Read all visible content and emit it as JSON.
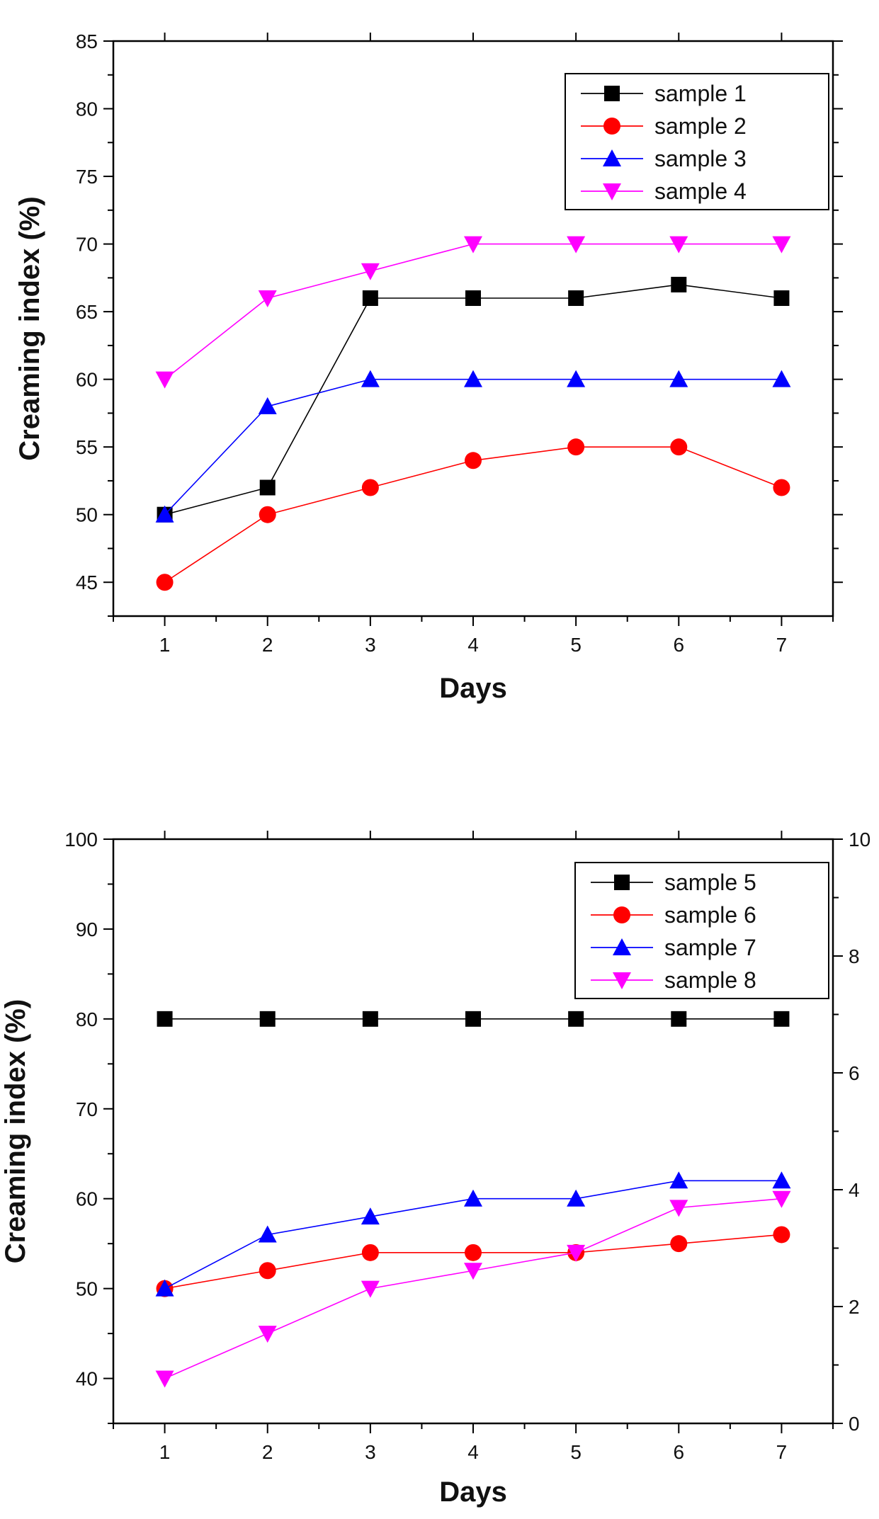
{
  "chart_data": [
    {
      "type": "line",
      "title": "",
      "xlabel": "Days",
      "ylabel": "Creaming index (%)",
      "x": [
        1,
        2,
        3,
        4,
        5,
        6,
        7
      ],
      "xlim": [
        0.5,
        7.5
      ],
      "ylim": [
        42.5,
        85
      ],
      "xticks": [
        1,
        2,
        3,
        4,
        5,
        6,
        7
      ],
      "yticks": [
        45,
        50,
        55,
        60,
        65,
        70,
        75,
        80,
        85
      ],
      "legend_position": "top-right",
      "series": [
        {
          "name": "sample 1",
          "values": [
            50,
            52,
            66,
            66,
            66,
            67,
            66
          ],
          "color": "#000000",
          "marker": "square"
        },
        {
          "name": "sample 2",
          "values": [
            45,
            50,
            52,
            54,
            55,
            55,
            52
          ],
          "color": "#ff0000",
          "marker": "circle"
        },
        {
          "name": "sample 3",
          "values": [
            50,
            58,
            60,
            60,
            60,
            60,
            60
          ],
          "color": "#0000ff",
          "marker": "triangle-up"
        },
        {
          "name": "sample 4",
          "values": [
            60,
            66,
            68,
            70,
            70,
            70,
            70
          ],
          "color": "#ff00ff",
          "marker": "triangle-down"
        }
      ]
    },
    {
      "type": "line",
      "title": "",
      "xlabel": "Days",
      "ylabel": "Creaming index (%)",
      "x": [
        1,
        2,
        3,
        4,
        5,
        6,
        7
      ],
      "xlim": [
        0.5,
        7.5
      ],
      "ylim": [
        35,
        100
      ],
      "xticks": [
        1,
        2,
        3,
        4,
        5,
        6,
        7
      ],
      "yticks": [
        40,
        50,
        60,
        70,
        80,
        90,
        100
      ],
      "right_axis": {
        "ylim": [
          0,
          10
        ],
        "yticks": [
          0,
          2,
          4,
          6,
          8,
          10
        ]
      },
      "legend_position": "top-right",
      "series": [
        {
          "name": "sample 5",
          "values": [
            80,
            80,
            80,
            80,
            80,
            80,
            80
          ],
          "color": "#000000",
          "marker": "square"
        },
        {
          "name": "sample 6",
          "values": [
            50,
            52,
            54,
            54,
            54,
            55,
            56
          ],
          "color": "#ff0000",
          "marker": "circle"
        },
        {
          "name": "sample 7",
          "values": [
            50,
            56,
            58,
            60,
            60,
            62,
            62
          ],
          "color": "#0000ff",
          "marker": "triangle-up"
        },
        {
          "name": "sample 8",
          "values": [
            40,
            45,
            50,
            52,
            54,
            59,
            60
          ],
          "color": "#ff00ff",
          "marker": "triangle-down"
        }
      ]
    }
  ]
}
